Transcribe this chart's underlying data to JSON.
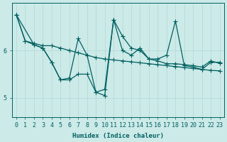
{
  "xlabel": "Humidex (Indice chaleur)",
  "bg_color": "#cceae8",
  "line_color": "#006060",
  "grid_color": "#b0d8d4",
  "yticks": [
    5,
    6
  ],
  "ylim": [
    4.6,
    7.0
  ],
  "xlim": [
    -0.5,
    23.5
  ],
  "lines": [
    {
      "x": [
        0,
        1,
        2,
        3,
        4,
        5,
        6,
        7,
        8,
        9,
        10,
        11,
        12,
        13,
        14,
        15,
        16,
        17,
        18,
        19,
        20,
        21,
        22,
        23
      ],
      "y": [
        6.75,
        6.2,
        6.15,
        6.1,
        6.1,
        6.05,
        6.0,
        5.95,
        5.9,
        5.85,
        5.82,
        5.8,
        5.78,
        5.76,
        5.74,
        5.72,
        5.7,
        5.68,
        5.66,
        5.64,
        5.62,
        5.6,
        5.58,
        5.57
      ]
    },
    {
      "x": [
        0,
        1,
        2,
        3,
        4,
        5,
        6,
        7,
        8,
        9,
        10,
        11,
        12,
        13,
        14,
        15,
        16,
        17,
        18,
        19,
        20,
        21,
        22,
        23
      ],
      "y": [
        6.75,
        6.2,
        6.12,
        6.05,
        5.75,
        5.38,
        5.42,
        6.25,
        5.9,
        5.12,
        5.18,
        6.65,
        6.0,
        5.9,
        6.05,
        5.82,
        5.78,
        5.72,
        5.72,
        5.7,
        5.68,
        5.65,
        5.78,
        5.73
      ]
    },
    {
      "x": [
        0,
        2,
        3,
        4,
        5,
        6,
        7,
        8,
        9,
        10,
        11,
        12,
        13,
        14,
        15,
        16,
        17,
        18,
        19,
        20,
        21,
        22,
        23
      ],
      "y": [
        6.75,
        6.12,
        6.05,
        5.75,
        5.38,
        5.38,
        5.5,
        5.5,
        5.12,
        5.05,
        6.65,
        6.3,
        6.05,
        6.0,
        5.82,
        5.82,
        5.9,
        6.62,
        5.68,
        5.65,
        5.6,
        5.75,
        5.75
      ]
    }
  ]
}
